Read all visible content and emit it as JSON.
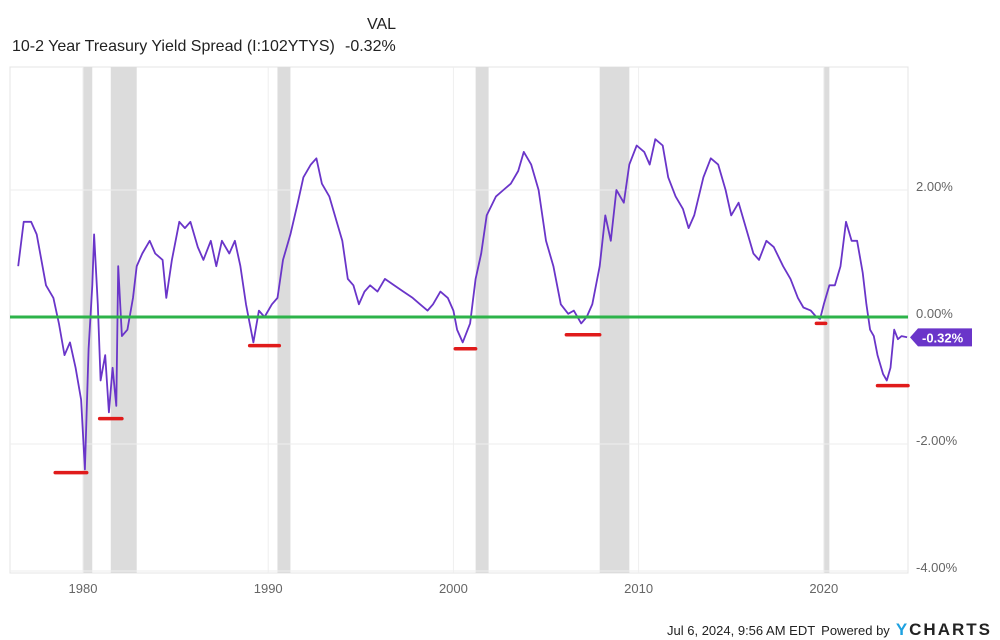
{
  "header": {
    "series_name": "10-2 Year Treasury Yield Spread (I:102YTYS)",
    "col_label": "VAL",
    "value": "-0.32%"
  },
  "footer": {
    "timestamp": "Jul 6, 2024, 9:56 AM EDT",
    "powered_by": "Powered by",
    "brand": "YCHARTS"
  },
  "colors": {
    "series": "#6a35c9",
    "zero_line": "#2db34a",
    "recession": "#dcdcdc",
    "marker": "#e01b1b",
    "grid": "#eeeeee"
  },
  "chart_data": {
    "type": "line",
    "title": "",
    "xlabel": "",
    "ylabel": "",
    "xlim": [
      1976.5,
      2024.5
    ],
    "ylim": [
      -4,
      3.9
    ],
    "x_ticks": [
      1980,
      1990,
      2000,
      2010,
      2020
    ],
    "y_ticks": [
      {
        "v": 2,
        "label": "2.00%"
      },
      {
        "v": 0,
        "label": "0.00%"
      },
      {
        "v": -2,
        "label": "-2.00%"
      },
      {
        "v": -4,
        "label": "-4.00%"
      }
    ],
    "grid": true,
    "y_axis_side": "right",
    "last_value_label": "-0.32%",
    "reference_line": 0,
    "recessions": [
      [
        1980.0,
        1980.5
      ],
      [
        1981.5,
        1982.9
      ],
      [
        1990.5,
        1991.2
      ],
      [
        2001.2,
        2001.9
      ],
      [
        2007.9,
        2009.5
      ],
      [
        2020.0,
        2020.3
      ]
    ],
    "trough_markers": [
      {
        "x": [
          1978.5,
          1980.2
        ],
        "y": -2.45
      },
      {
        "x": [
          1980.9,
          1982.1
        ],
        "y": -1.6
      },
      {
        "x": [
          1989.0,
          1990.6
        ],
        "y": -0.45
      },
      {
        "x": [
          2000.1,
          2001.2
        ],
        "y": -0.5
      },
      {
        "x": [
          2006.1,
          2007.9
        ],
        "y": -0.28
      },
      {
        "x": [
          2019.6,
          2020.1
        ],
        "y": -0.1
      },
      {
        "x": [
          2022.9,
          2024.6
        ],
        "y": -1.08
      }
    ],
    "series": [
      {
        "values": [
          [
            1976.5,
            0.8
          ],
          [
            1976.8,
            1.5
          ],
          [
            1977.2,
            1.5
          ],
          [
            1977.5,
            1.3
          ],
          [
            1978.0,
            0.5
          ],
          [
            1978.4,
            0.3
          ],
          [
            1978.7,
            -0.1
          ],
          [
            1979.0,
            -0.6
          ],
          [
            1979.3,
            -0.4
          ],
          [
            1979.6,
            -0.8
          ],
          [
            1979.9,
            -1.3
          ],
          [
            1980.1,
            -2.4
          ],
          [
            1980.3,
            -0.5
          ],
          [
            1980.5,
            0.5
          ],
          [
            1980.6,
            1.3
          ],
          [
            1980.8,
            0.2
          ],
          [
            1980.95,
            -1.0
          ],
          [
            1981.2,
            -0.6
          ],
          [
            1981.4,
            -1.5
          ],
          [
            1981.6,
            -0.8
          ],
          [
            1981.8,
            -1.4
          ],
          [
            1981.9,
            0.8
          ],
          [
            1982.1,
            -0.3
          ],
          [
            1982.4,
            -0.2
          ],
          [
            1982.7,
            0.3
          ],
          [
            1982.9,
            0.8
          ],
          [
            1983.2,
            1.0
          ],
          [
            1983.6,
            1.2
          ],
          [
            1983.9,
            1.0
          ],
          [
            1984.3,
            0.9
          ],
          [
            1984.5,
            0.3
          ],
          [
            1984.8,
            0.9
          ],
          [
            1985.2,
            1.5
          ],
          [
            1985.5,
            1.4
          ],
          [
            1985.8,
            1.5
          ],
          [
            1986.2,
            1.1
          ],
          [
            1986.5,
            0.9
          ],
          [
            1986.9,
            1.2
          ],
          [
            1987.2,
            0.8
          ],
          [
            1987.5,
            1.2
          ],
          [
            1987.9,
            1.0
          ],
          [
            1988.2,
            1.2
          ],
          [
            1988.5,
            0.8
          ],
          [
            1988.8,
            0.2
          ],
          [
            1989.0,
            -0.1
          ],
          [
            1989.2,
            -0.4
          ],
          [
            1989.5,
            0.1
          ],
          [
            1989.8,
            0.0
          ],
          [
            1990.2,
            0.2
          ],
          [
            1990.5,
            0.3
          ],
          [
            1990.8,
            0.9
          ],
          [
            1991.2,
            1.3
          ],
          [
            1991.6,
            1.8
          ],
          [
            1991.9,
            2.2
          ],
          [
            1992.3,
            2.4
          ],
          [
            1992.6,
            2.5
          ],
          [
            1992.9,
            2.1
          ],
          [
            1993.3,
            1.9
          ],
          [
            1993.7,
            1.5
          ],
          [
            1994.0,
            1.2
          ],
          [
            1994.3,
            0.6
          ],
          [
            1994.6,
            0.5
          ],
          [
            1994.9,
            0.2
          ],
          [
            1995.2,
            0.4
          ],
          [
            1995.5,
            0.5
          ],
          [
            1995.9,
            0.4
          ],
          [
            1996.3,
            0.6
          ],
          [
            1996.8,
            0.5
          ],
          [
            1997.3,
            0.4
          ],
          [
            1997.8,
            0.3
          ],
          [
            1998.2,
            0.2
          ],
          [
            1998.6,
            0.1
          ],
          [
            1998.9,
            0.2
          ],
          [
            1999.3,
            0.4
          ],
          [
            1999.7,
            0.3
          ],
          [
            2000.0,
            0.1
          ],
          [
            2000.2,
            -0.2
          ],
          [
            2000.5,
            -0.4
          ],
          [
            2000.9,
            -0.1
          ],
          [
            2001.2,
            0.6
          ],
          [
            2001.5,
            1.0
          ],
          [
            2001.8,
            1.6
          ],
          [
            2002.3,
            1.9
          ],
          [
            2002.7,
            2.0
          ],
          [
            2003.1,
            2.1
          ],
          [
            2003.5,
            2.3
          ],
          [
            2003.8,
            2.6
          ],
          [
            2004.2,
            2.4
          ],
          [
            2004.6,
            2.0
          ],
          [
            2005.0,
            1.2
          ],
          [
            2005.4,
            0.8
          ],
          [
            2005.8,
            0.2
          ],
          [
            2006.2,
            0.05
          ],
          [
            2006.5,
            0.1
          ],
          [
            2006.9,
            -0.1
          ],
          [
            2007.2,
            0.0
          ],
          [
            2007.5,
            0.2
          ],
          [
            2007.9,
            0.8
          ],
          [
            2008.2,
            1.6
          ],
          [
            2008.5,
            1.2
          ],
          [
            2008.8,
            2.0
          ],
          [
            2009.2,
            1.8
          ],
          [
            2009.5,
            2.4
          ],
          [
            2009.9,
            2.7
          ],
          [
            2010.3,
            2.6
          ],
          [
            2010.6,
            2.4
          ],
          [
            2010.9,
            2.8
          ],
          [
            2011.3,
            2.7
          ],
          [
            2011.6,
            2.2
          ],
          [
            2012.0,
            1.9
          ],
          [
            2012.4,
            1.7
          ],
          [
            2012.7,
            1.4
          ],
          [
            2013.0,
            1.6
          ],
          [
            2013.5,
            2.2
          ],
          [
            2013.9,
            2.5
          ],
          [
            2014.3,
            2.4
          ],
          [
            2014.7,
            2.0
          ],
          [
            2015.0,
            1.6
          ],
          [
            2015.4,
            1.8
          ],
          [
            2015.8,
            1.4
          ],
          [
            2016.2,
            1.0
          ],
          [
            2016.5,
            0.9
          ],
          [
            2016.9,
            1.2
          ],
          [
            2017.3,
            1.1
          ],
          [
            2017.8,
            0.8
          ],
          [
            2018.2,
            0.6
          ],
          [
            2018.6,
            0.3
          ],
          [
            2018.9,
            0.15
          ],
          [
            2019.3,
            0.1
          ],
          [
            2019.6,
            0.0
          ],
          [
            2019.8,
            -0.03
          ],
          [
            2020.0,
            0.2
          ],
          [
            2020.3,
            0.5
          ],
          [
            2020.6,
            0.5
          ],
          [
            2020.9,
            0.8
          ],
          [
            2021.2,
            1.5
          ],
          [
            2021.5,
            1.2
          ],
          [
            2021.8,
            1.2
          ],
          [
            2022.1,
            0.7
          ],
          [
            2022.3,
            0.2
          ],
          [
            2022.5,
            -0.2
          ],
          [
            2022.7,
            -0.3
          ],
          [
            2022.9,
            -0.6
          ],
          [
            2023.2,
            -0.9
          ],
          [
            2023.4,
            -1.0
          ],
          [
            2023.6,
            -0.8
          ],
          [
            2023.8,
            -0.2
          ],
          [
            2024.0,
            -0.35
          ],
          [
            2024.2,
            -0.3
          ],
          [
            2024.5,
            -0.32
          ]
        ]
      }
    ]
  }
}
